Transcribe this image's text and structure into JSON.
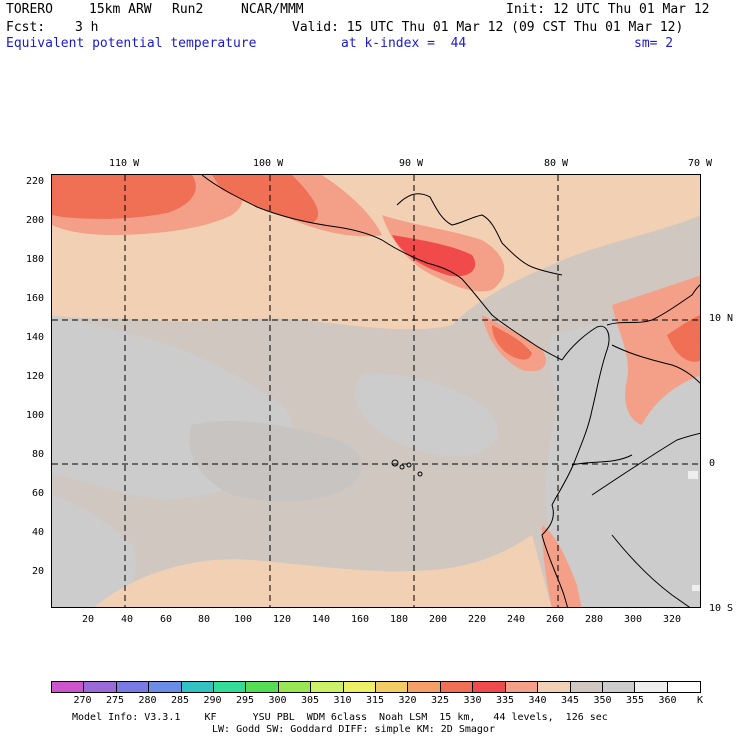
{
  "header": {
    "model": "TORERO",
    "resolution": "15km ARW",
    "run": "Run2",
    "org": "NCAR/MMM",
    "init": "Init: 12 UTC Thu 01 Mar 12",
    "fcst_label": "Fcst:",
    "fcst_value": "3 h",
    "valid": "Valid: 15 UTC Thu 01 Mar 12 (09 CST Thu 01 Mar 12)",
    "field": "Equivalent potential temperature",
    "level": "at k-index =  44",
    "smoothing": "sm= 2"
  },
  "map": {
    "lon_labels": [
      "110 W",
      "100 W",
      "90 W",
      "80 W",
      "70 W"
    ],
    "lat_labels": [
      "10 N",
      "0",
      "10 S"
    ],
    "y_ticks": [
      "220",
      "200",
      "180",
      "160",
      "140",
      "120",
      "100",
      "80",
      "60",
      "40",
      "20"
    ],
    "x_ticks": [
      "20",
      "40",
      "60",
      "80",
      "100",
      "120",
      "140",
      "160",
      "180",
      "200",
      "220",
      "240",
      "260",
      "280",
      "300",
      "320"
    ]
  },
  "colorbar": {
    "labels": [
      "270",
      "275",
      "280",
      "285",
      "290",
      "295",
      "300",
      "305",
      "310",
      "315",
      "320",
      "325",
      "330",
      "335",
      "340",
      "345",
      "350",
      "355",
      "360"
    ],
    "unit": "K",
    "colors": [
      "#cc55cc",
      "#9a6ad8",
      "#7a7ae6",
      "#6a8ee6",
      "#33c2c2",
      "#33dd99",
      "#55dd55",
      "#99e655",
      "#ccf066",
      "#eef066",
      "#f4cc66",
      "#f4a066",
      "#f07055",
      "#f04a4a",
      "#f4a088",
      "#f2d0b4",
      "#d0c8c0",
      "#cccccc",
      "#eeeeee",
      "#ffffff"
    ]
  },
  "footer": {
    "line1": "Model Info: V3.3.1    KF      YSU PBL  WDM 6class  Noah LSM  15 km,   44 levels,  126 sec",
    "line2": "LW: Godd SW: Goddard DIFF: simple KM: 2D Smagor"
  }
}
